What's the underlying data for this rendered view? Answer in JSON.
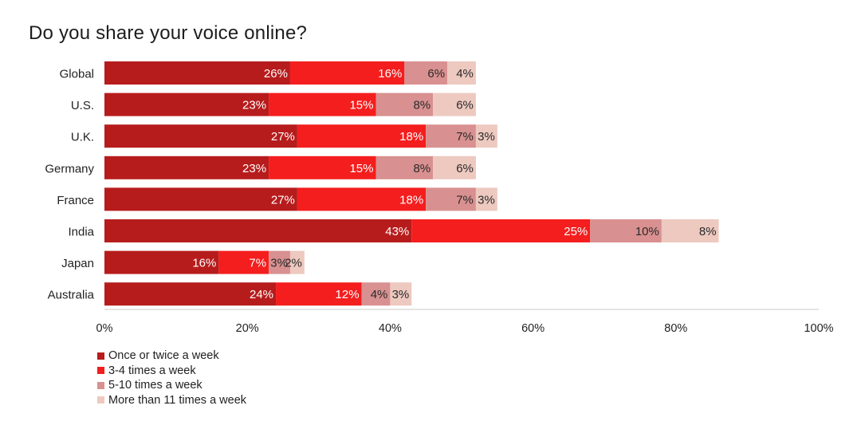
{
  "chart_data": {
    "type": "bar",
    "orientation": "horizontal",
    "stacked": true,
    "title": "Do you share your voice online?",
    "categories": [
      "Global",
      "U.S.",
      "U.K.",
      "Germany",
      "France",
      "India",
      "Japan",
      "Australia"
    ],
    "series": [
      {
        "name": "Once or twice a week",
        "color": "#b71c1c",
        "values": [
          26,
          23,
          27,
          23,
          27,
          43,
          16,
          24
        ]
      },
      {
        "name": "3-4 times a week",
        "color": "#f41e1e",
        "values": [
          16,
          15,
          18,
          15,
          18,
          25,
          7,
          12
        ]
      },
      {
        "name": "5-10 times a week",
        "color": "#d99090",
        "values": [
          6,
          8,
          7,
          8,
          7,
          10,
          3,
          4
        ]
      },
      {
        "name": "More than 11 times a week",
        "color": "#edc9c0",
        "values": [
          4,
          6,
          3,
          6,
          3,
          8,
          2,
          3
        ]
      }
    ],
    "xlim": [
      0,
      100
    ],
    "xticks": [
      "0%",
      "20%",
      "40%",
      "60%",
      "80%",
      "100%"
    ],
    "value_suffix": "%",
    "legend_position": "bottom-left",
    "grid": false
  }
}
